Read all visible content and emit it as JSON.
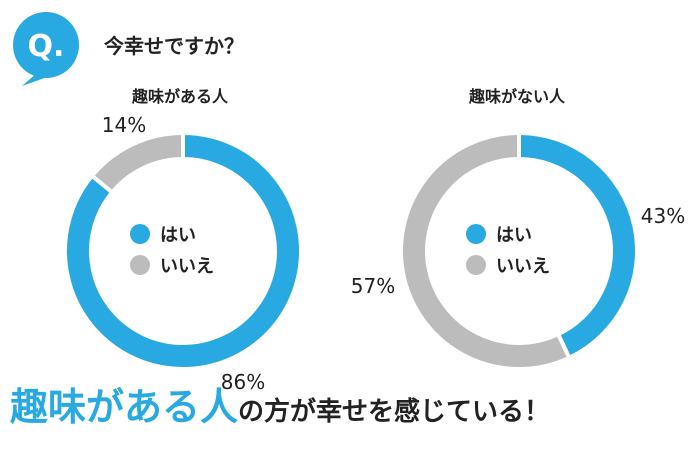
{
  "question": {
    "icon_label": "Q.",
    "text": "今幸せですか？"
  },
  "colors": {
    "yes": "#29a9e1",
    "no": "#bcbcbc",
    "accent": "#29a9e1",
    "text": "#222222"
  },
  "chart_data": [
    {
      "type": "pie",
      "title": "趣味がある人",
      "categories": [
        "はい",
        "いいえ"
      ],
      "values": [
        86,
        14
      ],
      "value_labels": [
        "86%",
        "14%"
      ],
      "legend_placement": "center"
    },
    {
      "type": "pie",
      "title": "趣味がない人",
      "categories": [
        "はい",
        "いいえ"
      ],
      "values": [
        43,
        57
      ],
      "value_labels": [
        "43%",
        "57%"
      ],
      "legend_placement": "center"
    }
  ],
  "conclusion": {
    "emphasis": "趣味がある人",
    "rest": "の方が幸せを感じている！"
  }
}
